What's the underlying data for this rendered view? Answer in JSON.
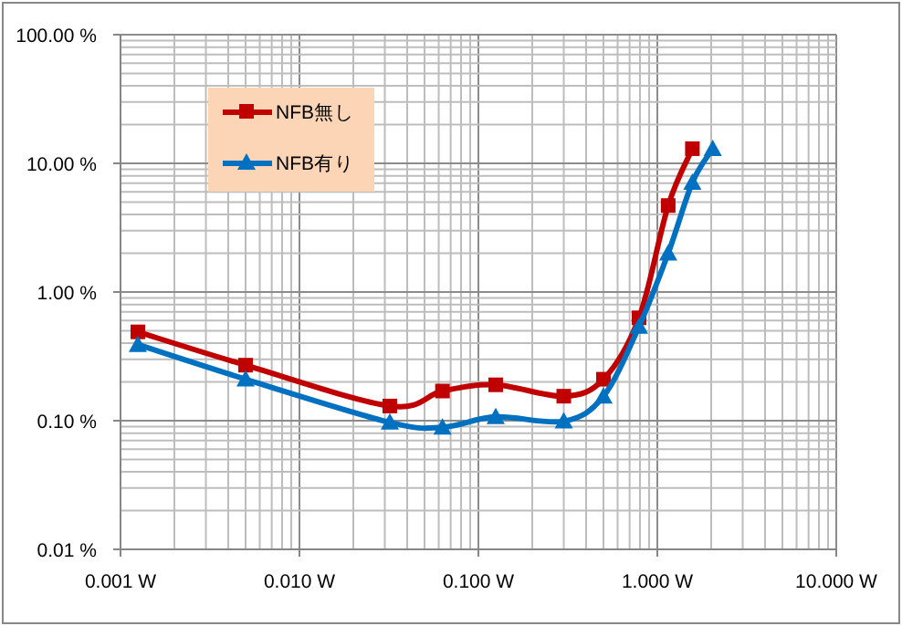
{
  "chart_data": {
    "type": "line",
    "log": "xy",
    "grid": true,
    "legend": "top left",
    "line_style": "solid",
    "xlim": [
      0.001,
      10
    ],
    "ylim": [
      0.01,
      100
    ],
    "xticks": [
      {
        "value": 0.001,
        "label": "0.001 W"
      },
      {
        "value": 0.01,
        "label": "0.010 W"
      },
      {
        "value": 0.1,
        "label": "0.100 W"
      },
      {
        "value": 1,
        "label": "1.000 W"
      },
      {
        "value": 10,
        "label": "10.000 W"
      }
    ],
    "yticks": [
      {
        "value": 0.01,
        "label": "0.01 %"
      },
      {
        "value": 0.1,
        "label": "0.10 %"
      },
      {
        "value": 1,
        "label": "1.00 %"
      },
      {
        "value": 10,
        "label": "10.00 %"
      },
      {
        "value": 100,
        "label": "100.00 %"
      }
    ],
    "series": [
      {
        "name": "NFB無し",
        "color": "#c00000",
        "marker": "square",
        "x": [
          0.00125,
          0.005,
          0.032,
          0.063,
          0.125,
          0.3,
          0.5,
          0.79,
          1.15,
          1.57
        ],
        "values": [
          0.49,
          0.27,
          0.13,
          0.17,
          0.19,
          0.155,
          0.21,
          0.63,
          4.7,
          13
        ]
      },
      {
        "name": "NFB有り",
        "color": "#0070c0",
        "marker": "triangle",
        "x": [
          0.00125,
          0.005,
          0.032,
          0.063,
          0.125,
          0.3,
          0.5,
          0.79,
          1.15,
          1.57,
          2.04
        ],
        "values": [
          0.39,
          0.21,
          0.097,
          0.089,
          0.107,
          0.099,
          0.155,
          0.54,
          2.0,
          7.1,
          13
        ]
      }
    ]
  }
}
